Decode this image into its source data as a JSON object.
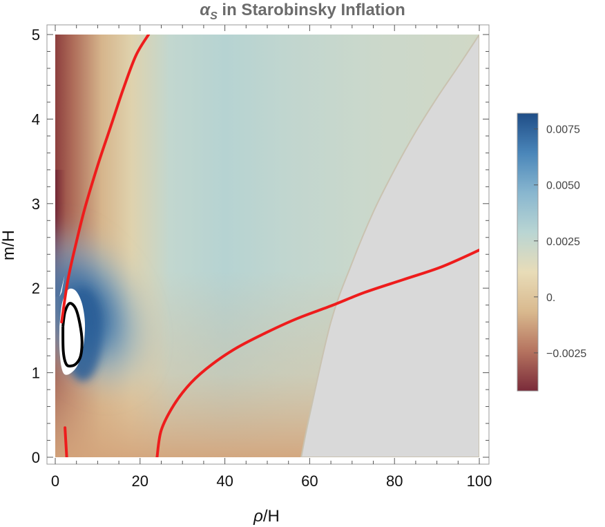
{
  "chart_data": {
    "type": "heatmap",
    "title": {
      "symbol": "α",
      "subscript": "S",
      "text": " in Starobinsky Inflation"
    },
    "xlabel": {
      "symbol": "ρ",
      "text": "/H"
    },
    "ylabel": "m/H",
    "xlim": [
      0,
      100
    ],
    "ylim": [
      0,
      5
    ],
    "xticks": [
      0,
      20,
      40,
      60,
      80,
      100
    ],
    "xtick_labels": [
      "0",
      "20",
      "40",
      "60",
      "80",
      "100"
    ],
    "yticks": [
      0,
      1,
      2,
      3,
      4,
      5
    ],
    "ytick_labels": [
      "0",
      "1",
      "2",
      "3",
      "4",
      "5"
    ],
    "colorbar": {
      "range": [
        -0.0042,
        0.0082
      ],
      "ticks": [
        0.0075,
        0.005,
        0.0025,
        0,
        -0.0025
      ],
      "tick_labels": [
        "0.0075",
        "0.0050",
        "0.0025",
        "0.",
        "−0.0025"
      ],
      "colors": [
        "#7a2b3a",
        "#b5735f",
        "#d9b98e",
        "#e8dcb8",
        "#b9d5d3",
        "#88b6cf",
        "#4a86b9",
        "#1f4d87"
      ]
    },
    "excluded_region_color": "#d9d9d9",
    "excluded_boundary": {
      "x": [
        58,
        60,
        65,
        70,
        75,
        80,
        85,
        90,
        95,
        100
      ],
      "y": [
        0,
        0.5,
        1.6,
        2.3,
        2.9,
        3.4,
        3.85,
        4.25,
        4.62,
        5.0
      ]
    },
    "undefined_region_color": "#ffffff",
    "red_contours": [
      {
        "x": [
          1.5,
          3,
          5,
          7,
          10,
          13,
          16,
          19,
          22
        ],
        "y": [
          1.6,
          2.1,
          2.55,
          2.95,
          3.45,
          3.9,
          4.35,
          4.75,
          5.0
        ]
      },
      {
        "x": [
          24,
          25,
          28,
          32,
          37,
          43,
          50,
          57,
          65,
          73,
          82,
          91,
          100
        ],
        "y": [
          0,
          0.32,
          0.62,
          0.88,
          1.1,
          1.3,
          1.48,
          1.64,
          1.79,
          1.95,
          2.1,
          2.25,
          2.45
        ]
      },
      {
        "x": [
          2.3,
          2.7
        ],
        "y": [
          0.35,
          0
        ]
      }
    ],
    "black_contour": {
      "x": [
        1.8,
        2.3,
        3.4,
        4.8,
        5.8,
        6.3,
        6.0,
        5.0,
        3.8,
        2.6,
        1.9,
        1.8
      ],
      "y": [
        1.55,
        1.72,
        1.82,
        1.76,
        1.58,
        1.38,
        1.2,
        1.11,
        1.08,
        1.1,
        1.25,
        1.55
      ]
    }
  }
}
